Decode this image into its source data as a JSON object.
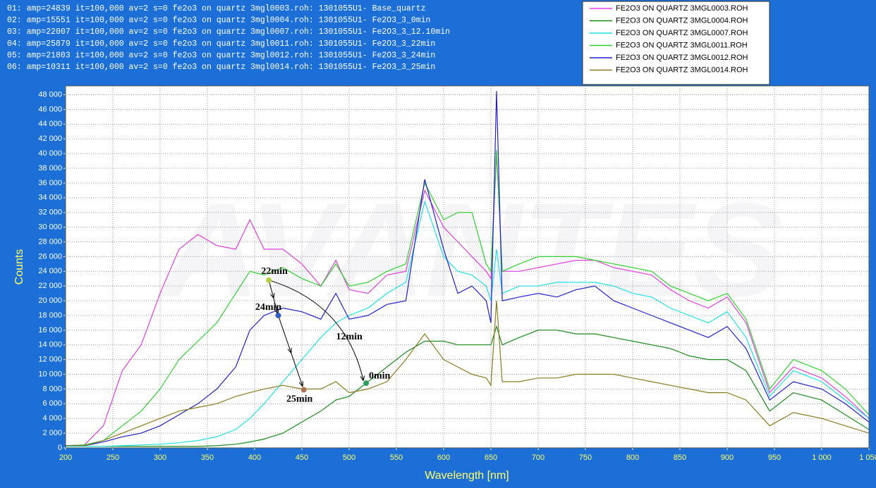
{
  "chart_data": {
    "type": "line",
    "header_lines": [
      "01: amp=24839        it=100,000 av=2 s=0 fe2o3 on quartz 3mgl0003.roh: 1301055U1- Base_quartz",
      "02: amp=15551        it=100,000 av=2 s=0 fe2o3 on quartz 3mgl0004.roh: 1301055U1- Fe2O3_3_0min",
      "03: amp=22007        it=100,000 av=2 s=0 fe2o3 on quartz 3mgl0007.roh: 1301055U1- Fe2O3_3_12.10min",
      "04: amp=25879        it=100,000 av=2 s=0 fe2o3 on quartz 3mgl0011.roh: 1301055U1- Fe2O3_3_22min",
      "05: amp=21803        it=100,000 av=2 s=0 fe2o3 on quartz 3mgl0012.roh: 1301055U1- Fe2O3_3_24min",
      "06: amp=10311        it=100,000 av=2 s=0 fe2o3 on quartz 3mgl0014.roh: 1301055U1- Fe2O3_3_25min"
    ],
    "watermark": "AVANTES",
    "x_label": "Wavelength [nm]",
    "y_label": "Counts",
    "xlim": [
      200,
      1050
    ],
    "ylim": [
      0,
      49200
    ],
    "xticks": [
      200,
      250,
      300,
      350,
      400,
      450,
      500,
      550,
      600,
      650,
      700,
      750,
      800,
      850,
      900,
      950,
      {
        "value": 1000,
        "label": "1 000"
      },
      {
        "value": 1050,
        "label": "1 050"
      }
    ],
    "yticks": [
      0,
      {
        "value": 2000,
        "label": "2 000"
      },
      {
        "value": 4000,
        "label": "4 000"
      },
      {
        "value": 6000,
        "label": "6 000"
      },
      {
        "value": 8000,
        "label": "8 000"
      },
      {
        "value": 10000,
        "label": "10 000"
      },
      {
        "value": 12000,
        "label": "12 000"
      },
      {
        "value": 14000,
        "label": "14 000"
      },
      {
        "value": 16000,
        "label": "16 000"
      },
      {
        "value": 18000,
        "label": "18 000"
      },
      {
        "value": 20000,
        "label": "20 000"
      },
      {
        "value": 22000,
        "label": "22 000"
      },
      {
        "value": 24000,
        "label": "24 000"
      },
      {
        "value": 26000,
        "label": "26 000"
      },
      {
        "value": 28000,
        "label": "28 000"
      },
      {
        "value": 30000,
        "label": "30 000"
      },
      {
        "value": 32000,
        "label": "32 000"
      },
      {
        "value": 34000,
        "label": "34 000"
      },
      {
        "value": 36000,
        "label": "36 000"
      },
      {
        "value": 38000,
        "label": "38 000"
      },
      {
        "value": 40000,
        "label": "40 000"
      },
      {
        "value": 42000,
        "label": "42 000"
      },
      {
        "value": 44000,
        "label": "44 000"
      },
      {
        "value": 46000,
        "label": "46 000"
      },
      {
        "value": 48000,
        "label": "48 000"
      }
    ],
    "grid": true,
    "legend": "top-right",
    "x": [
      200,
      220,
      240,
      260,
      280,
      300,
      320,
      340,
      360,
      380,
      395,
      410,
      430,
      450,
      470,
      486,
      500,
      520,
      540,
      560,
      580,
      600,
      615,
      630,
      645,
      650,
      656,
      662,
      680,
      700,
      720,
      740,
      760,
      780,
      800,
      820,
      840,
      860,
      880,
      900,
      920,
      945,
      970,
      1000,
      1025,
      1050
    ],
    "series": [
      {
        "name": "FE2O3 ON QUARTZ 3MGL0003.ROH",
        "color": "#e040e0",
        "values": [
          300,
          400,
          3000,
          10500,
          14000,
          21000,
          27000,
          29000,
          27500,
          27000,
          31000,
          27000,
          27000,
          25000,
          22000,
          25500,
          21500,
          21000,
          23500,
          24000,
          35000,
          30000,
          28000,
          26000,
          24000,
          23000,
          40000,
          24000,
          24000,
          24500,
          25000,
          25500,
          25500,
          24500,
          24000,
          23500,
          21500,
          20000,
          19000,
          20500,
          17000,
          7500,
          11000,
          9500,
          7000,
          4000
        ]
      },
      {
        "name": "FE2O3 ON QUARTZ 3MGL0004.ROH",
        "color": "#1a8a1a",
        "values": [
          200,
          200,
          200,
          200,
          200,
          200,
          200,
          200,
          300,
          500,
          800,
          1200,
          2000,
          3500,
          5000,
          6500,
          7000,
          9000,
          11000,
          13000,
          14500,
          14500,
          14000,
          14000,
          14000,
          14000,
          16500,
          14000,
          15000,
          16000,
          16000,
          15500,
          15500,
          15000,
          14500,
          14000,
          13500,
          12500,
          12000,
          12000,
          10500,
          5000,
          7500,
          6500,
          4500,
          2500
        ]
      },
      {
        "name": "FE2O3 ON QUARTZ 3MGL0007.ROH",
        "color": "#20e0e8",
        "values": [
          200,
          200,
          200,
          300,
          400,
          500,
          700,
          1000,
          1500,
          2500,
          4000,
          6000,
          9000,
          12000,
          15000,
          17000,
          18000,
          19000,
          21000,
          22500,
          33500,
          26000,
          24000,
          23500,
          22000,
          20000,
          27000,
          21000,
          22000,
          22000,
          22500,
          22500,
          22500,
          22000,
          21000,
          20500,
          19000,
          18000,
          17000,
          18500,
          15000,
          7000,
          10500,
          9000,
          6500,
          4000
        ]
      },
      {
        "name": "FE2O3 ON QUARTZ 3MGL0011.ROH",
        "color": "#30d030",
        "values": [
          300,
          400,
          1000,
          3000,
          5000,
          8000,
          12000,
          14500,
          17000,
          21000,
          24000,
          23500,
          24500,
          23000,
          22000,
          25000,
          22000,
          22500,
          24000,
          25000,
          36000,
          31000,
          32000,
          32000,
          25000,
          24000,
          40500,
          24000,
          25000,
          26000,
          26000,
          26000,
          25500,
          25000,
          24500,
          24000,
          22000,
          21000,
          20000,
          21000,
          17500,
          8000,
          12000,
          10500,
          8000,
          4500
        ]
      },
      {
        "name": "FE2O3 ON QUARTZ 3MGL0012.ROH",
        "color": "#2020c8",
        "values": [
          300,
          300,
          800,
          1500,
          2000,
          3000,
          4500,
          6000,
          8000,
          11000,
          16000,
          18000,
          19000,
          18500,
          17500,
          21000,
          17500,
          18000,
          19500,
          20000,
          36500,
          27000,
          21000,
          22000,
          20000,
          17000,
          48500,
          20000,
          20500,
          21000,
          20500,
          21500,
          22000,
          20000,
          19000,
          18000,
          17000,
          16000,
          15000,
          16500,
          13500,
          6500,
          9000,
          8000,
          6000,
          3500
        ]
      },
      {
        "name": "FE2O3 ON QUARTZ 3MGL0014.ROH",
        "color": "#8a7a20",
        "values": [
          300,
          300,
          1000,
          2000,
          3000,
          4000,
          5000,
          5500,
          6000,
          7000,
          7500,
          8000,
          8500,
          8000,
          8000,
          9000,
          7500,
          8000,
          9000,
          12000,
          15500,
          12000,
          11000,
          10000,
          9500,
          8500,
          20000,
          9000,
          9000,
          9500,
          9500,
          10000,
          10000,
          10000,
          9500,
          9000,
          8500,
          8000,
          7500,
          7500,
          6500,
          3000,
          4800,
          4000,
          3000,
          2000
        ]
      }
    ],
    "annotations": [
      {
        "text": "22min",
        "x": 415,
        "y": 22800,
        "color": "#b8d040"
      },
      {
        "text": "24min",
        "x": 425,
        "y": 18000,
        "color": "#3060c0"
      },
      {
        "text": "12min"
      },
      {
        "text": "0min",
        "x": 518,
        "y": 8800,
        "color": "#30a060"
      },
      {
        "text": "25min",
        "x": 452,
        "y": 7900,
        "color": "#b07050"
      }
    ]
  }
}
